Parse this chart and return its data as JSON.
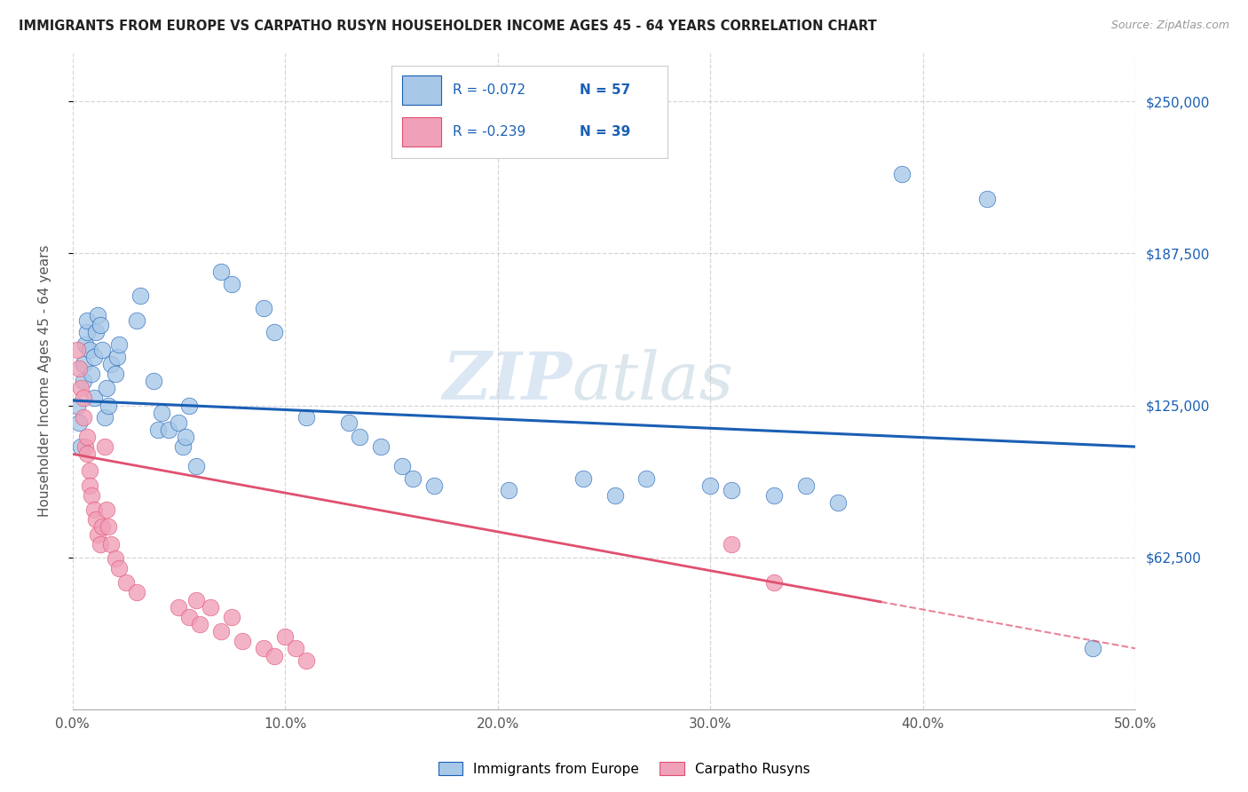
{
  "title": "IMMIGRANTS FROM EUROPE VS CARPATHO RUSYN HOUSEHOLDER INCOME AGES 45 - 64 YEARS CORRELATION CHART",
  "source": "Source: ZipAtlas.com",
  "ylabel": "Householder Income Ages 45 - 64 years",
  "ytick_labels": [
    "$62,500",
    "$125,000",
    "$187,500",
    "$250,000"
  ],
  "ytick_values": [
    62500,
    125000,
    187500,
    250000
  ],
  "ymin": 0,
  "ymax": 270000,
  "xmin": 0.0,
  "xmax": 0.5,
  "legend_R1": "R = -0.072",
  "legend_N1": "N = 57",
  "legend_R2": "R = -0.239",
  "legend_N2": "N = 39",
  "legend_label1": "Immigrants from Europe",
  "legend_label2": "Carpatho Rusyns",
  "color_blue": "#a8c8e8",
  "color_pink": "#f0a0b8",
  "color_blue_line": "#1a5fb4",
  "color_pink_line": "#e05070",
  "watermark_zip": "ZIP",
  "watermark_atlas": "atlas",
  "blue_scatter_x": [
    0.002,
    0.003,
    0.004,
    0.005,
    0.005,
    0.006,
    0.007,
    0.007,
    0.008,
    0.009,
    0.01,
    0.01,
    0.011,
    0.012,
    0.013,
    0.014,
    0.015,
    0.016,
    0.017,
    0.018,
    0.02,
    0.021,
    0.022,
    0.03,
    0.032,
    0.038,
    0.04,
    0.042,
    0.045,
    0.05,
    0.052,
    0.053,
    0.055,
    0.058,
    0.07,
    0.075,
    0.09,
    0.095,
    0.11,
    0.13,
    0.135,
    0.145,
    0.155,
    0.16,
    0.17,
    0.205,
    0.24,
    0.255,
    0.27,
    0.3,
    0.31,
    0.33,
    0.345,
    0.36,
    0.39,
    0.43,
    0.48
  ],
  "blue_scatter_y": [
    125000,
    118000,
    108000,
    135000,
    142000,
    150000,
    155000,
    160000,
    148000,
    138000,
    145000,
    128000,
    155000,
    162000,
    158000,
    148000,
    120000,
    132000,
    125000,
    142000,
    138000,
    145000,
    150000,
    160000,
    170000,
    135000,
    115000,
    122000,
    115000,
    118000,
    108000,
    112000,
    125000,
    100000,
    180000,
    175000,
    165000,
    155000,
    120000,
    118000,
    112000,
    108000,
    100000,
    95000,
    92000,
    90000,
    95000,
    88000,
    95000,
    92000,
    90000,
    88000,
    92000,
    85000,
    220000,
    210000,
    25000
  ],
  "pink_scatter_x": [
    0.002,
    0.003,
    0.004,
    0.005,
    0.005,
    0.006,
    0.007,
    0.007,
    0.008,
    0.008,
    0.009,
    0.01,
    0.011,
    0.012,
    0.013,
    0.014,
    0.015,
    0.016,
    0.017,
    0.018,
    0.02,
    0.022,
    0.025,
    0.03,
    0.05,
    0.055,
    0.058,
    0.06,
    0.065,
    0.07,
    0.075,
    0.08,
    0.09,
    0.095,
    0.1,
    0.105,
    0.11,
    0.31,
    0.33
  ],
  "pink_scatter_y": [
    148000,
    140000,
    132000,
    120000,
    128000,
    108000,
    112000,
    105000,
    98000,
    92000,
    88000,
    82000,
    78000,
    72000,
    68000,
    75000,
    108000,
    82000,
    75000,
    68000,
    62000,
    58000,
    52000,
    48000,
    42000,
    38000,
    45000,
    35000,
    42000,
    32000,
    38000,
    28000,
    25000,
    22000,
    30000,
    25000,
    20000,
    68000,
    52000
  ]
}
